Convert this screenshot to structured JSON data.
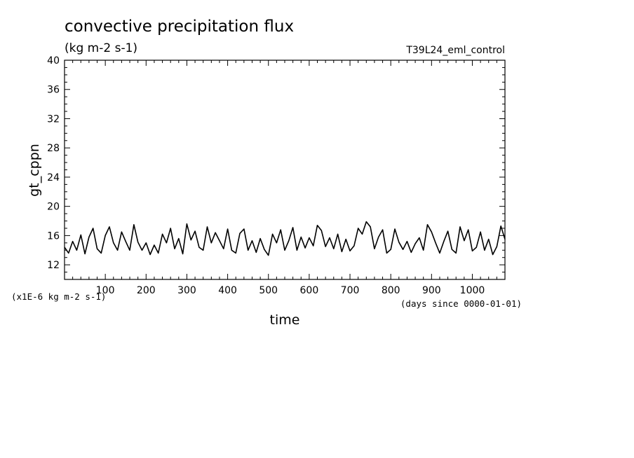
{
  "chart_data": {
    "type": "line",
    "title": "convective precipitation flux",
    "subtitle": "(kg m-2 s-1)",
    "run_label": "T39L24_eml_control",
    "xlabel": "time",
    "ylabel": "gt_cppn",
    "x_units_note": "(days since 0000-01-01)",
    "y_scale_note": "(x1E-6 kg m-2 s-1)",
    "xlim": [
      0,
      1080
    ],
    "ylim": [
      10,
      40
    ],
    "x_ticks": [
      100,
      200,
      300,
      400,
      500,
      600,
      700,
      800,
      900,
      1000
    ],
    "y_ticks": [
      12,
      16,
      20,
      24,
      28,
      32,
      36,
      40
    ],
    "grid": false,
    "series": [
      {
        "x": [
          0,
          10,
          20,
          30,
          40,
          50,
          60,
          70,
          80,
          90,
          100,
          110,
          120,
          130,
          140,
          150,
          160,
          170,
          180,
          190,
          200,
          210,
          220,
          230,
          240,
          250,
          260,
          270,
          280,
          290,
          300,
          310,
          320,
          330,
          340,
          350,
          360,
          370,
          380,
          390,
          400,
          410,
          420,
          430,
          440,
          450,
          460,
          470,
          480,
          490,
          500,
          510,
          520,
          530,
          540,
          550,
          560,
          570,
          580,
          590,
          600,
          610,
          620,
          630,
          640,
          650,
          660,
          670,
          680,
          690,
          700,
          710,
          720,
          730,
          740,
          750,
          760,
          770,
          780,
          790,
          800,
          810,
          820,
          830,
          840,
          850,
          860,
          870,
          880,
          890,
          900,
          910,
          920,
          930,
          940,
          950,
          960,
          970,
          980,
          990,
          1000,
          1010,
          1020,
          1030,
          1040,
          1050,
          1060,
          1070,
          1080
        ],
        "values": [
          14.4,
          13.6,
          15.2,
          14.0,
          16.1,
          13.5,
          15.8,
          17.0,
          14.2,
          13.6,
          16.0,
          17.2,
          15.0,
          14.0,
          16.5,
          15.2,
          14.0,
          17.5,
          15.1,
          14.0,
          15.0,
          13.4,
          14.7,
          13.6,
          16.2,
          15.0,
          17.0,
          14.2,
          15.6,
          13.5,
          17.6,
          15.4,
          16.6,
          14.4,
          14.0,
          17.2,
          15.0,
          16.4,
          15.3,
          14.2,
          16.9,
          14.0,
          13.6,
          16.3,
          16.9,
          14.0,
          15.3,
          13.7,
          15.6,
          14.1,
          13.3,
          16.2,
          15.0,
          16.8,
          14.0,
          15.3,
          17.1,
          14.0,
          15.8,
          14.3,
          15.7,
          14.6,
          17.4,
          16.7,
          14.5,
          15.7,
          14.2,
          16.2,
          13.8,
          15.5,
          13.9,
          14.6,
          17.0,
          16.2,
          17.9,
          17.2,
          14.2,
          15.8,
          16.8,
          13.6,
          14.1,
          16.9,
          15.1,
          14.1,
          15.2,
          13.7,
          14.9,
          15.7,
          14.0,
          17.5,
          16.5,
          15.0,
          13.6,
          15.2,
          16.6,
          14.1,
          13.6,
          17.2,
          15.3,
          16.8,
          13.9,
          14.4,
          16.5,
          14.0,
          15.5,
          13.4,
          14.5,
          17.3,
          15.5
        ]
      }
    ]
  }
}
